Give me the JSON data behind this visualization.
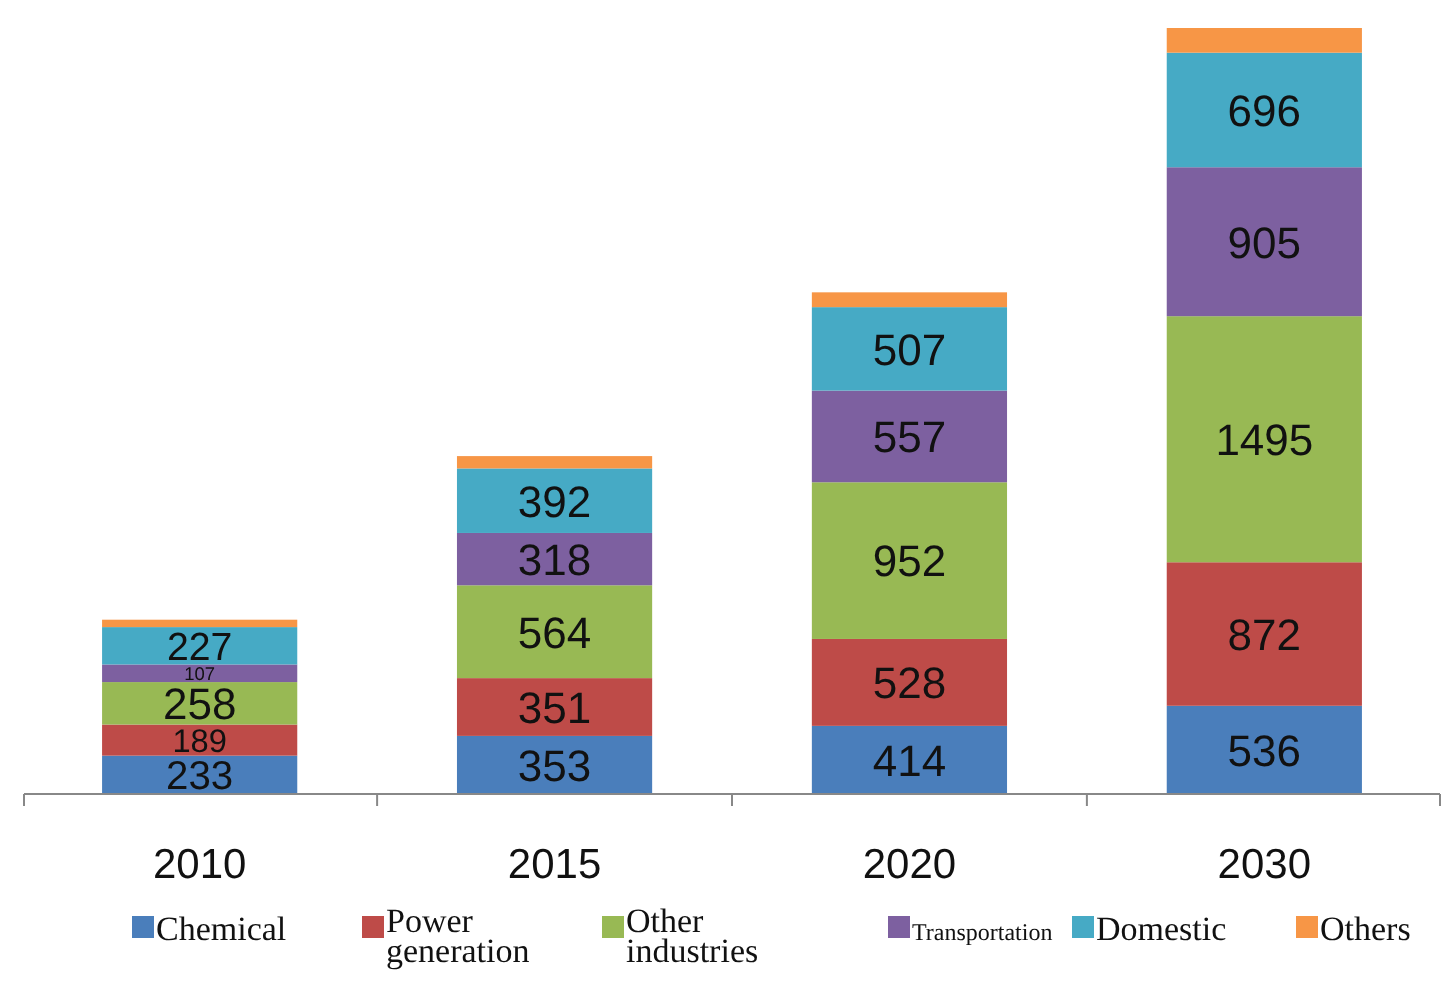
{
  "chart_data": {
    "type": "bar",
    "stacked": true,
    "categories": [
      "2010",
      "2015",
      "2020",
      "2030"
    ],
    "legend": "bottom",
    "series": [
      {
        "name": "Chemical",
        "color": "#4a7ebb",
        "values": [
          233,
          353,
          414,
          536
        ],
        "value_labels": [
          "233",
          "353",
          "414",
          "536"
        ]
      },
      {
        "name": "Power generation",
        "color": "#be4b48",
        "values": [
          189,
          351,
          528,
          872
        ],
        "value_labels": [
          "189",
          "351",
          "528",
          "872"
        ]
      },
      {
        "name": "Other industries",
        "color": "#98b954",
        "values": [
          258,
          564,
          952,
          1495
        ],
        "value_labels": [
          "258",
          "564",
          "952",
          "1495"
        ]
      },
      {
        "name": "Transportation",
        "color": "#7d60a0",
        "values": [
          107,
          318,
          557,
          905
        ],
        "value_labels": [
          "107",
          "318",
          "557",
          "905"
        ]
      },
      {
        "name": "Domestic",
        "color": "#46aac5",
        "values": [
          227,
          392,
          507,
          696
        ],
        "value_labels": [
          "227",
          "392",
          "507",
          "696"
        ]
      },
      {
        "name": "Others",
        "color": "#f79646",
        "values": [
          45,
          75,
          90,
          150
        ],
        "value_labels": [
          null,
          null,
          null,
          null
        ]
      }
    ]
  }
}
